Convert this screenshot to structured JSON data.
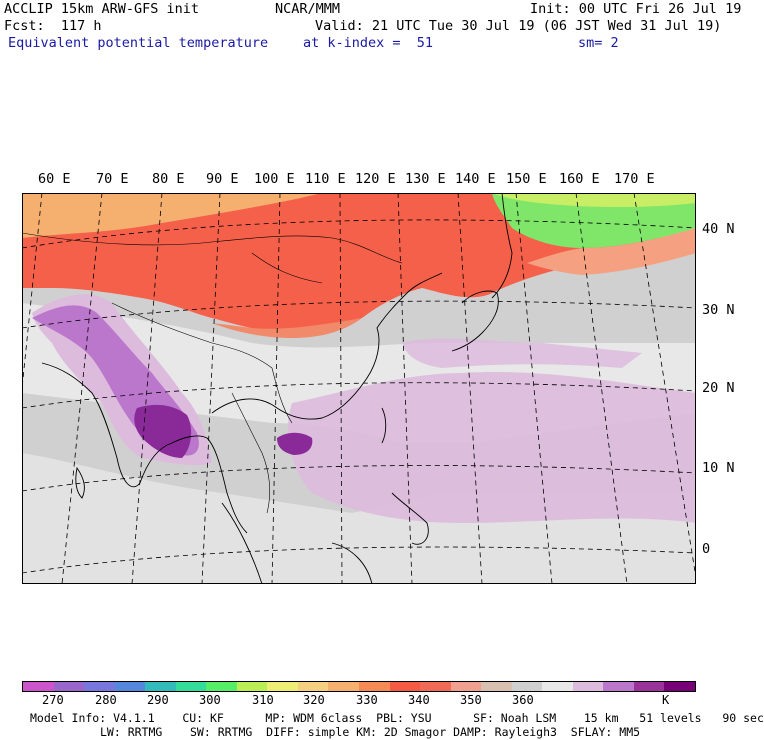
{
  "header": {
    "model": "ACCLIP 15km ARW-GFS init",
    "fcst": "Fcst:  117 h",
    "field": "Equivalent potential temperature",
    "org": "NCAR/MMM",
    "init": "Init: 00 UTC Fri 26 Jul 19",
    "valid": "Valid: 21 UTC Tue 30 Jul 19 (06 JST Wed 31 Jul 19)",
    "level": "at k-index =  51",
    "smooth": "sm= 2"
  },
  "lon_labels": [
    "60 E",
    "70 E",
    "80 E",
    "90 E",
    "100 E",
    "110 E",
    "120 E",
    "130 E",
    "140 E",
    "150 E",
    "160 E",
    "170 E"
  ],
  "lat_labels": [
    "40 N",
    "30 N",
    "20 N",
    "10 N",
    "0"
  ],
  "colorbar": {
    "labels": [
      "270",
      "280",
      "290",
      "300",
      "310",
      "320",
      "330",
      "340",
      "350",
      "360",
      "K"
    ],
    "colors": [
      "#cc55cc",
      "#9966cc",
      "#7777dd",
      "#5588dd",
      "#33bbbb",
      "#33dd99",
      "#55ee66",
      "#bbee55",
      "#eeee77",
      "#f5d080",
      "#f5b070",
      "#f58a55",
      "#f55a45",
      "#f06a55",
      "#f0a090",
      "#d8c0b0",
      "#cfcfcf",
      "#e8e8e8",
      "#ddbbdd",
      "#bb77cc",
      "#993399",
      "#770077"
    ]
  },
  "footer": {
    "line1": "Model Info: V4.1.1    CU: KF      MP: WDM 6class  PBL: YSU      SF: Noah LSM    15 km   51 levels   90 sec",
    "line2": "LW: RRTMG    SW: RRTMG  DIFF: simple KM: 2D Smagor DAMP: Rayleigh3  SFLAY: MM5"
  }
}
